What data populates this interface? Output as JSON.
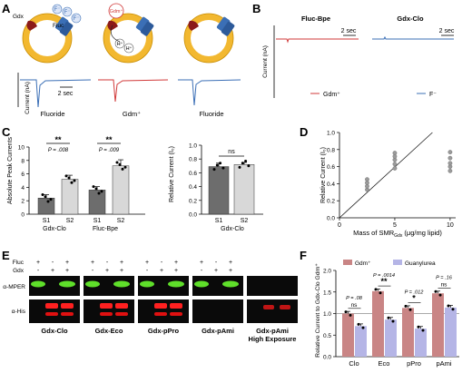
{
  "panels": {
    "A": {
      "letter": "A",
      "vesicle_labels": {
        "gdx": "Gdx",
        "fluc": "Fluc",
        "gdm": "Gdm⁺",
        "f": "F⁻",
        "h": "H⁺"
      },
      "ylabel": "Current (nA)",
      "scale": "2 sec",
      "trace_labels": [
        "Fluoride",
        "Gdm⁺",
        "Fluoride"
      ],
      "colors": {
        "fluoride": "#3b6fb6",
        "gdm": "#d13a3a",
        "membrane": "#f2b830"
      }
    },
    "B": {
      "letter": "B",
      "ylabel": "Current (nA)",
      "left_title": "Fluc-Bpe",
      "right_title": "Gdx-Clo",
      "scale_left": "2 sec",
      "scale_right": "2 sec",
      "legend_left": "Gdm⁺",
      "legend_right": "F⁻"
    },
    "C": {
      "letter": "C",
      "left": {
        "ylabel": "Absolute Peak Currents",
        "yticks": [
          "0",
          "2",
          "4",
          "6",
          "8",
          "10"
        ],
        "xticks": [
          "S1",
          "S2",
          "S1",
          "S2"
        ],
        "groups": [
          "Gdx-Clo",
          "Fluc-Bpe"
        ],
        "values": [
          2.4,
          5.2,
          3.6,
          7.2
        ],
        "errors": [
          0.5,
          0.6,
          0.5,
          0.9
        ],
        "sig": [
          "**",
          "**"
        ],
        "pvals": [
          "P = .008",
          "P = .009"
        ]
      },
      "right": {
        "ylabel": "Relative Current (I₀)",
        "yticks": [
          "0.0",
          "0.2",
          "0.4",
          "0.6",
          "0.8",
          "1.0"
        ],
        "xticks": [
          "S1",
          "S2"
        ],
        "group": "Gdx-Clo",
        "values": [
          0.69,
          0.72
        ],
        "errors": [
          0.05,
          0.03
        ],
        "sig": "ns"
      }
    },
    "D": {
      "letter": "D",
      "ylabel": "Relative Current (I₀)",
      "xlabel": "Mass of SMR",
      "xlabel_sub": "Gdx",
      "xlabel_unit": " (μg/mg lipid)",
      "xticks": [
        "0",
        "5",
        "10"
      ],
      "yticks": [
        "0.0",
        "0.2",
        "0.4",
        "0.6",
        "0.8",
        "1.0"
      ]
    },
    "E": {
      "letter": "E",
      "row_labels": [
        "Fluc",
        "Gdx"
      ],
      "signs": [
        [
          "+",
          "-",
          "+"
        ],
        [
          "-",
          "+",
          "+"
        ]
      ],
      "blot_labels": [
        "α-MPER",
        "α-His"
      ],
      "lane_labels": [
        "Gdx-Clo",
        "Gdx-Eco",
        "Gdx-pPro",
        "Gdx-pAmi",
        "Gdx-pAmi"
      ],
      "high_exposure": "High Exposure"
    },
    "F": {
      "letter": "F",
      "ylabel": "Relative Current to Gdx-Clo Gdm⁺",
      "yticks": [
        "0.0",
        "0.5",
        "1.0",
        "1.5",
        "2.0"
      ],
      "legend": [
        "Gdm⁺",
        "Guanylurea"
      ],
      "categories": [
        "Clo",
        "Eco",
        "pPro",
        "pAmi"
      ],
      "sig": [
        "ns",
        "**",
        "*",
        "ns"
      ],
      "pvals": [
        "P = .08",
        "P = .0014",
        "P = .012",
        "P = .16"
      ],
      "colors": {
        "gdm": "#c98585",
        "guanylurea": "#b5b5e6"
      }
    }
  },
  "chart_data": [
    {
      "type": "bar",
      "title": "",
      "categories": [
        "Gdx-Clo S1",
        "Gdx-Clo S2",
        "Fluc-Bpe S1",
        "Fluc-Bpe S2"
      ],
      "values": [
        2.4,
        5.2,
        3.6,
        7.2
      ],
      "ylabel": "Absolute Peak Currents",
      "ylim": [
        0,
        10
      ]
    },
    {
      "type": "bar",
      "title": "",
      "categories": [
        "S1",
        "S2"
      ],
      "values": [
        0.69,
        0.72
      ],
      "ylabel": "Relative Current (I₀)",
      "ylim": [
        0,
        1.0
      ]
    },
    {
      "type": "scatter",
      "title": "",
      "x": [
        2.5,
        2.5,
        2.5,
        2.5,
        5,
        5,
        5,
        5,
        5,
        10,
        10,
        10,
        10,
        10
      ],
      "y": [
        0.33,
        0.37,
        0.41,
        0.45,
        0.58,
        0.63,
        0.68,
        0.72,
        0.76,
        0.55,
        0.6,
        0.64,
        0.7,
        0.77
      ],
      "line": {
        "x": [
          0,
          8.4
        ],
        "y": [
          0,
          1.0
        ]
      },
      "xlabel": "Mass of SMR Gdx (μg/mg lipid)",
      "ylabel": "Relative Current (I₀)",
      "xlim": [
        0,
        10.5
      ],
      "ylim": [
        0,
        1.0
      ]
    },
    {
      "type": "bar",
      "title": "",
      "categories": [
        "Clo",
        "Eco",
        "pPro",
        "pAmi"
      ],
      "series": [
        {
          "name": "Gdm⁺",
          "values": [
            1.0,
            1.52,
            1.13,
            1.47
          ]
        },
        {
          "name": "Guanylurea",
          "values": [
            0.71,
            0.86,
            0.65,
            1.14
          ]
        }
      ],
      "ylabel": "Relative Current to Gdx-Clo Gdm⁺",
      "ylim": [
        0,
        2.0
      ]
    }
  ]
}
